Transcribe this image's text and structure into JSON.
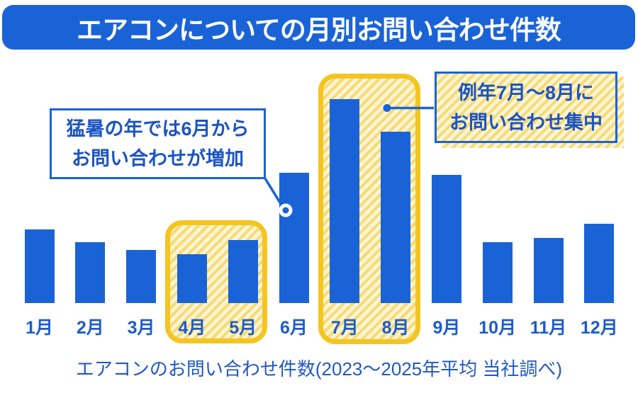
{
  "title": "エアコンについての月別お問い合わせ件数",
  "caption": "エアコンのお問い合わせ件数(2023〜2025年平均 当社調べ)",
  "callouts": {
    "june": {
      "line1": "猛暑の年では6月から",
      "line2": "お問い合わせが増加"
    },
    "summer": {
      "line1": "例年7月〜8月に",
      "line2": "お問い合わせ集中"
    }
  },
  "colors": {
    "primary_blue": "#1A63D7",
    "text_blue": "#1B54C3",
    "label_blue": "#1E5BCB",
    "highlight_border_yellow": "#F4C520",
    "hatch_yellow": "#F6DB74",
    "hatch_cream": "#FCF4D4",
    "background": "#FFFFFF"
  },
  "chart_data": {
    "type": "bar",
    "title": "エアコンについての月別お問い合わせ件数",
    "categories": [
      "1月",
      "2月",
      "3月",
      "4月",
      "5月",
      "6月",
      "7月",
      "8月",
      "9月",
      "10月",
      "11月",
      "12月"
    ],
    "values": [
      36,
      30,
      26,
      24,
      31,
      64,
      100,
      84,
      63,
      30,
      32,
      39
    ],
    "values_note": "relative scale, July = 100; no numeric y-axis shown in the figure",
    "xlabel": "",
    "ylabel": "",
    "ylim": [
      0,
      100
    ],
    "grid": false,
    "legend": false,
    "bar_color": "#1A63D7",
    "highlighted_ranges": [
      [
        "4月",
        "5月"
      ],
      [
        "7月",
        "8月"
      ]
    ],
    "annotations": [
      {
        "text": "猛暑の年ではお問い合わせが増加",
        "target": "6月"
      },
      {
        "text": "例年7月〜8月にお問い合わせ集中",
        "target": "7月〜8月"
      }
    ],
    "source_note": "エアコンのお問い合わせ件数(2023〜2025年平均 当社調べ)"
  }
}
